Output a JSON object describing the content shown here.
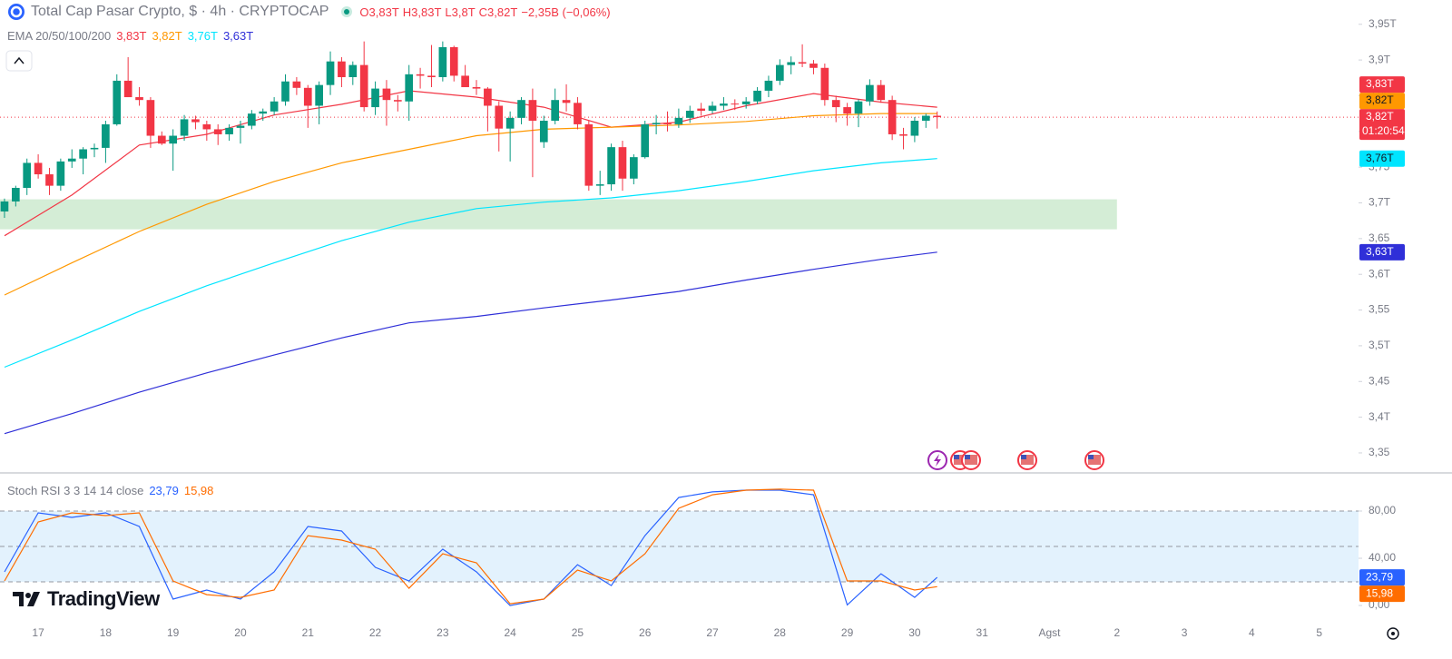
{
  "header": {
    "title": "Total Cap Pasar Crypto, $ · 4h · CRYPTOCAP",
    "ohlc": [
      "O3,83T",
      "H3,83T",
      "L3,8T",
      "C3,82T",
      "−2,35B (−0,06%)"
    ]
  },
  "brand": "TradingView",
  "chart_data": [
    {
      "type": "candlestick",
      "legend_title": "EMA 20/50/100/200",
      "up_color": "#089981",
      "down_color": "#f23645",
      "xlim": [
        10.4,
        494
      ],
      "xticks": [
        {
          "value": 24,
          "label": "17"
        },
        {
          "value": 48,
          "label": "18"
        },
        {
          "value": 72,
          "label": "19"
        },
        {
          "value": 96,
          "label": "20"
        },
        {
          "value": 120,
          "label": "21"
        },
        {
          "value": 144,
          "label": "22"
        },
        {
          "value": 168,
          "label": "23"
        },
        {
          "value": 192,
          "label": "24"
        },
        {
          "value": 216,
          "label": "25"
        },
        {
          "value": 240,
          "label": "26"
        },
        {
          "value": 264,
          "label": "27"
        },
        {
          "value": 288,
          "label": "28"
        },
        {
          "value": 312,
          "label": "29"
        },
        {
          "value": 336,
          "label": "30"
        },
        {
          "value": 360,
          "label": "31"
        },
        {
          "value": 384,
          "label": "Agst"
        },
        {
          "value": 408,
          "label": "2"
        },
        {
          "value": 432,
          "label": "3"
        },
        {
          "value": 456,
          "label": "4"
        },
        {
          "value": 480,
          "label": "5"
        }
      ],
      "ylim": [
        3.322,
        3.984
      ],
      "yticks": [
        {
          "value": 3.35,
          "label": "3,35"
        },
        {
          "value": 3.4,
          "label": "3,4T"
        },
        {
          "value": 3.45,
          "label": "3,45"
        },
        {
          "value": 3.5,
          "label": "3,5T"
        },
        {
          "value": 3.55,
          "label": "3,55"
        },
        {
          "value": 3.6,
          "label": "3,6T"
        },
        {
          "value": 3.65,
          "label": "3,65"
        },
        {
          "value": 3.7,
          "label": "3,7T"
        },
        {
          "value": 3.75,
          "label": "3,75"
        },
        {
          "value": 3.8,
          "label": "3,8T"
        },
        {
          "value": 3.85,
          "label": "3,85"
        },
        {
          "value": 3.9,
          "label": "3,9T"
        },
        {
          "value": 3.95,
          "label": "3,95T"
        }
      ],
      "x": [
        12,
        16,
        20,
        24,
        28,
        32,
        36,
        40,
        44,
        48,
        52,
        56,
        60,
        64,
        68,
        72,
        76,
        80,
        84,
        88,
        92,
        96,
        100,
        104,
        108,
        112,
        116,
        120,
        124,
        128,
        132,
        136,
        140,
        144,
        148,
        152,
        156,
        160,
        164,
        168,
        172,
        176,
        180,
        184,
        188,
        192,
        196,
        200,
        204,
        208,
        212,
        216,
        220,
        224,
        228,
        232,
        236,
        240,
        244,
        248,
        252,
        256,
        260,
        264,
        268,
        272,
        276,
        280,
        284,
        288,
        292,
        296,
        300,
        304,
        308,
        312,
        316,
        320,
        324,
        328,
        332,
        336,
        340,
        344
      ],
      "open": [
        3.688,
        3.702,
        3.721,
        3.756,
        3.74,
        3.724,
        3.758,
        3.762,
        3.775,
        3.777,
        3.81,
        3.871,
        3.848,
        3.844,
        3.794,
        3.783,
        3.794,
        3.817,
        3.81,
        3.803,
        3.796,
        3.805,
        3.808,
        3.825,
        3.828,
        3.842,
        3.87,
        3.861,
        3.836,
        3.865,
        3.898,
        3.876,
        3.893,
        3.834,
        3.86,
        3.844,
        3.842,
        3.88,
        3.878,
        3.876,
        3.918,
        3.878,
        3.862,
        3.86,
        3.836,
        3.804,
        3.819,
        3.844,
        3.785,
        3.815,
        3.844,
        3.84,
        3.81,
        3.724,
        3.726,
        3.778,
        3.734,
        3.764,
        3.81,
        3.812,
        3.81,
        3.819,
        3.832,
        3.829,
        3.836,
        3.839,
        3.838,
        3.842,
        3.857,
        3.871,
        3.893,
        3.897,
        3.895,
        3.889,
        3.844,
        3.834,
        3.825,
        3.842,
        3.865,
        3.844,
        3.796,
        3.794,
        3.815,
        3.822
      ],
      "high": [
        3.706,
        3.724,
        3.762,
        3.768,
        3.749,
        3.762,
        3.775,
        3.778,
        3.783,
        3.815,
        3.88,
        3.904,
        3.862,
        3.848,
        3.8,
        3.803,
        3.823,
        3.822,
        3.815,
        3.81,
        3.81,
        3.815,
        3.83,
        3.832,
        3.848,
        3.88,
        3.876,
        3.865,
        3.87,
        3.912,
        3.904,
        3.898,
        3.926,
        3.87,
        3.872,
        3.851,
        3.893,
        3.889,
        3.921,
        3.926,
        3.92,
        3.893,
        3.872,
        3.862,
        3.842,
        3.828,
        3.848,
        3.86,
        3.822,
        3.86,
        3.866,
        3.848,
        3.815,
        3.745,
        3.783,
        3.787,
        3.768,
        3.815,
        3.823,
        3.828,
        3.832,
        3.836,
        3.84,
        3.842,
        3.848,
        3.845,
        3.848,
        3.862,
        3.878,
        3.901,
        3.905,
        3.922,
        3.9,
        3.895,
        3.85,
        3.84,
        3.845,
        3.873,
        3.872,
        3.85,
        3.805,
        3.82,
        3.825,
        3.828
      ],
      "low": [
        3.679,
        3.695,
        3.711,
        3.734,
        3.711,
        3.717,
        3.749,
        3.74,
        3.764,
        3.756,
        3.808,
        3.848,
        3.836,
        3.777,
        3.781,
        3.745,
        3.787,
        3.803,
        3.787,
        3.781,
        3.787,
        3.783,
        3.803,
        3.815,
        3.823,
        3.836,
        3.851,
        3.805,
        3.81,
        3.851,
        3.862,
        3.865,
        3.828,
        3.823,
        3.808,
        3.828,
        3.815,
        3.86,
        3.862,
        3.87,
        3.87,
        3.862,
        3.851,
        3.8,
        3.772,
        3.758,
        3.81,
        3.736,
        3.777,
        3.81,
        3.828,
        3.803,
        3.717,
        3.711,
        3.717,
        3.717,
        3.726,
        3.762,
        3.796,
        3.8,
        3.805,
        3.812,
        3.822,
        3.825,
        3.83,
        3.83,
        3.832,
        3.838,
        3.848,
        3.865,
        3.88,
        3.89,
        3.88,
        3.836,
        3.813,
        3.808,
        3.806,
        3.836,
        3.84,
        3.788,
        3.775,
        3.785,
        3.805,
        3.804
      ],
      "close": [
        3.702,
        3.721,
        3.756,
        3.74,
        3.724,
        3.758,
        3.762,
        3.775,
        3.777,
        3.81,
        3.871,
        3.848,
        3.844,
        3.794,
        3.783,
        3.794,
        3.817,
        3.813,
        3.803,
        3.796,
        3.805,
        3.808,
        3.825,
        3.828,
        3.842,
        3.87,
        3.861,
        3.836,
        3.865,
        3.898,
        3.876,
        3.893,
        3.834,
        3.86,
        3.844,
        3.842,
        3.88,
        3.878,
        3.876,
        3.918,
        3.878,
        3.862,
        3.86,
        3.836,
        3.804,
        3.819,
        3.844,
        3.815,
        3.815,
        3.844,
        3.84,
        3.81,
        3.724,
        3.726,
        3.778,
        3.734,
        3.764,
        3.81,
        3.812,
        3.81,
        3.819,
        3.829,
        3.829,
        3.836,
        3.839,
        3.838,
        3.842,
        3.857,
        3.871,
        3.893,
        3.897,
        3.895,
        3.889,
        3.844,
        3.834,
        3.825,
        3.842,
        3.865,
        3.844,
        3.796,
        3.794,
        3.815,
        3.822,
        3.82
      ],
      "series": [
        {
          "color": "#f23645",
          "last_label": "3,83T",
          "x": [
            12,
            36,
            60,
            84,
            108,
            132,
            156,
            180,
            204,
            228,
            252,
            276,
            300,
            324,
            344
          ],
          "values": [
            3.654,
            3.711,
            3.781,
            3.796,
            3.823,
            3.838,
            3.857,
            3.848,
            3.834,
            3.806,
            3.813,
            3.836,
            3.853,
            3.841,
            3.834
          ]
        },
        {
          "color": "#ff9800",
          "last_label": "3,82T",
          "x": [
            12,
            36,
            60,
            84,
            108,
            132,
            156,
            180,
            204,
            228,
            252,
            276,
            300,
            324,
            344
          ],
          "values": [
            3.571,
            3.616,
            3.66,
            3.698,
            3.73,
            3.756,
            3.775,
            3.794,
            3.803,
            3.806,
            3.809,
            3.814,
            3.822,
            3.825,
            3.825
          ]
        },
        {
          "color": "#00e5ff",
          "last_label": "3,76T",
          "x": [
            12,
            36,
            60,
            84,
            108,
            132,
            156,
            180,
            204,
            228,
            252,
            276,
            300,
            324,
            344
          ],
          "values": [
            3.47,
            3.508,
            3.548,
            3.584,
            3.616,
            3.647,
            3.673,
            3.692,
            3.701,
            3.707,
            3.717,
            3.73,
            3.745,
            3.756,
            3.762
          ]
        },
        {
          "color": "#2f2fd8",
          "last_label": "3,63T",
          "x": [
            12,
            36,
            60,
            84,
            108,
            132,
            156,
            180,
            204,
            228,
            252,
            276,
            300,
            324,
            344
          ],
          "values": [
            3.377,
            3.405,
            3.435,
            3.462,
            3.487,
            3.511,
            3.532,
            3.541,
            3.553,
            3.564,
            3.576,
            3.592,
            3.607,
            3.621,
            3.631
          ]
        }
      ],
      "zone": {
        "range": [
          3.663,
          3.705
        ],
        "x_end": 408,
        "color": "#d4edd6"
      },
      "last_price": {
        "value": 3.82,
        "label": "3,82T",
        "countdown": "01:20:54",
        "color": "#f23645"
      }
    },
    {
      "type": "line",
      "title": "Stoch RSI 3 3 14 14 close",
      "xlim": [
        10.4,
        494
      ],
      "ylim": [
        -13.8,
        112.3
      ],
      "yticks": [
        {
          "value": 80,
          "label": "80,00"
        },
        {
          "value": 40,
          "label": "40,00"
        },
        {
          "value": 0,
          "label": "0,00"
        }
      ],
      "band": [
        20,
        80
      ],
      "band_color": "#e3f2fd",
      "levels": [
        80,
        50,
        20
      ],
      "x": [
        12,
        24,
        36,
        48,
        60,
        72,
        84,
        96,
        108,
        120,
        132,
        144,
        156,
        168,
        180,
        192,
        204,
        216,
        228,
        240,
        252,
        264,
        276,
        288,
        300,
        312,
        324,
        336,
        344
      ],
      "series": [
        {
          "color": "#2962ff",
          "last_label": "23,79",
          "values": [
            28.5,
            78.5,
            74.6,
            78.5,
            66.9,
            5.4,
            13.1,
            5.4,
            28.5,
            66.9,
            63.1,
            32.3,
            20.8,
            47.7,
            28.5,
            0,
            5.4,
            34.6,
            16.9,
            59.2,
            91.5,
            96.2,
            97.7,
            97.7,
            93.8,
            0.5,
            26.9,
            6.9,
            23.79
          ]
        },
        {
          "color": "#ff6d00",
          "last_label": "15,98",
          "values": [
            20.8,
            70.8,
            78.5,
            76.2,
            78.5,
            20.8,
            9.2,
            6.9,
            13.1,
            59.2,
            55.4,
            47.7,
            14.6,
            43.8,
            36.2,
            1.5,
            5.4,
            30,
            20.8,
            43.8,
            82.3,
            93.8,
            97.7,
            98.5,
            97.7,
            20.8,
            20.8,
            13.1,
            15.98
          ]
        }
      ]
    }
  ]
}
